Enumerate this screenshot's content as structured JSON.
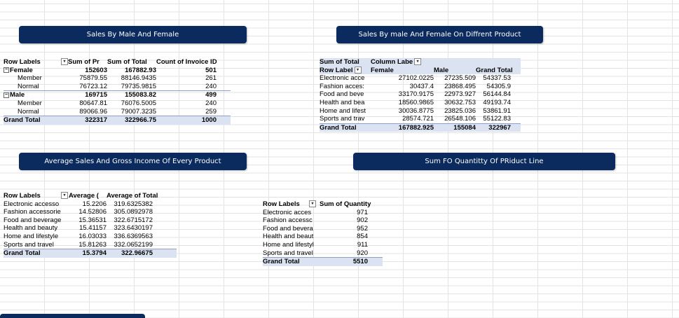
{
  "banners": {
    "b1": "Sales By Male And Female",
    "b2": "Sales By male And Female On Diffrent Product",
    "b3": "Average Sales And Gross Income Of Every Product",
    "b4": "Sum FO Quantitty Of PRiduct Line"
  },
  "pt1": {
    "headers": [
      "Row Labels",
      "Sum of Pr",
      "Sum of Total",
      "Count of Invoice ID"
    ],
    "rows": [
      {
        "label": "Female",
        "a": "152603",
        "b": "167882.93",
        "c": "501",
        "group": true
      },
      {
        "label": "Member",
        "a": "75879.55",
        "b": "88146.9435",
        "c": "261"
      },
      {
        "label": "Normal",
        "a": "76723.12",
        "b": "79735.9815",
        "c": "240"
      },
      {
        "label": "Male",
        "a": "169715",
        "b": "155083.82",
        "c": "499",
        "group": true
      },
      {
        "label": "Member",
        "a": "80647.81",
        "b": "76076.5005",
        "c": "240"
      },
      {
        "label": "Normal",
        "a": "89066.96",
        "b": "79007.3235",
        "c": "259"
      }
    ],
    "total": {
      "label": "Grand Total",
      "a": "322317",
      "b": "322966.75",
      "c": "1000"
    }
  },
  "pt2": {
    "head1": [
      "Sum of Total",
      "Column Labe"
    ],
    "head2": [
      "Row Label",
      "Female",
      "Male",
      "Grand Total"
    ],
    "rows": [
      {
        "label": "Electronic acce",
        "f": "27102.0225",
        "m": "27235.509",
        "t": "54337.53"
      },
      {
        "label": "Fashion acces:",
        "f": "30437.4",
        "m": "23868.495",
        "t": "54305.9"
      },
      {
        "label": "Food and beve",
        "f": "33170.9175",
        "m": "22973.927",
        "t": "56144.84"
      },
      {
        "label": "Health and bea",
        "f": "18560.9865",
        "m": "30632.753",
        "t": "49193.74"
      },
      {
        "label": "Home and lifest",
        "f": "30036.8775",
        "m": "23825.036",
        "t": "53861.91"
      },
      {
        "label": "Sports and trav",
        "f": "28574.721",
        "m": "26548.106",
        "t": "55122.83"
      }
    ],
    "total": {
      "label": "Grand Total",
      "f": "167882.925",
      "m": "155084",
      "t": "322967"
    }
  },
  "pt3": {
    "headers": [
      "Row Labels",
      "Average (",
      "Average of Total"
    ],
    "rows": [
      {
        "label": "Electronic accesso",
        "a": "15.2206",
        "b": "319.6325382"
      },
      {
        "label": "Fashion accessorie",
        "a": "14.52806",
        "b": "305.0892978"
      },
      {
        "label": "Food and beverage",
        "a": "15.36531",
        "b": "322.6715172"
      },
      {
        "label": "Health and beauty",
        "a": "15.41157",
        "b": "323.6430197"
      },
      {
        "label": "Home and lifestyle",
        "a": "16.03033",
        "b": "336.6369563"
      },
      {
        "label": "Sports and travel",
        "a": "15.81263",
        "b": "332.0652199"
      }
    ],
    "total": {
      "label": "Grand Total",
      "a": "15.3794",
      "b": "322.96675"
    }
  },
  "pt4": {
    "headers": [
      "Row Labels",
      "Sum of Quantity"
    ],
    "rows": [
      {
        "label": "Electronic acces",
        "q": "971"
      },
      {
        "label": "Fashion accessc",
        "q": "902"
      },
      {
        "label": "Food and bevera",
        "q": "952"
      },
      {
        "label": "Health and beaut",
        "q": "854"
      },
      {
        "label": "Home and lifestyl",
        "q": "911"
      },
      {
        "label": "Sports and travel",
        "q": "920"
      }
    ],
    "total": {
      "label": "Grand Total",
      "q": "5510"
    }
  }
}
